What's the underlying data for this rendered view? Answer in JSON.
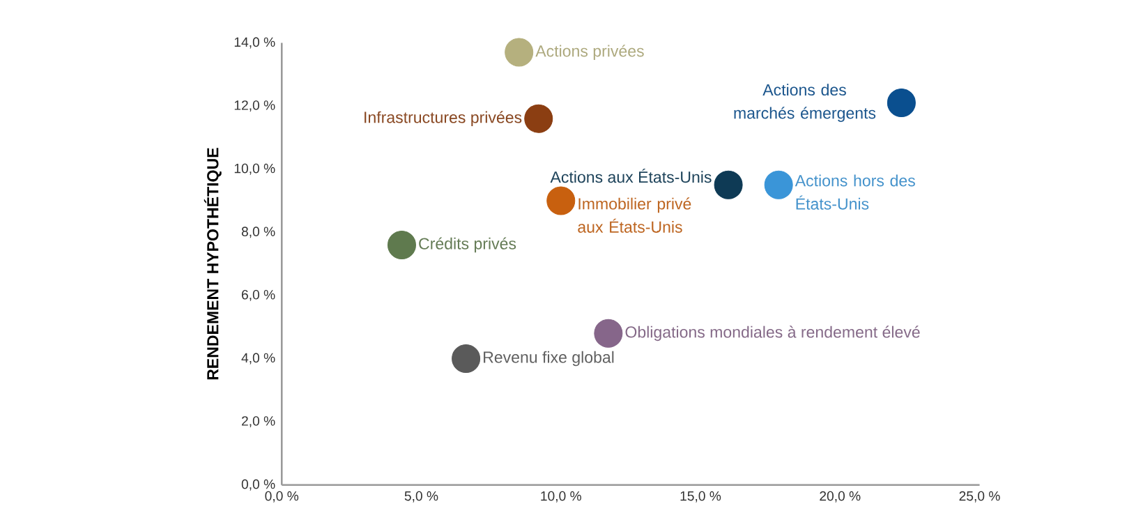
{
  "chart_data": {
    "type": "scatter",
    "ylabel": "RENDEMENT HYPOTHÉTIQUE",
    "marker": "circle",
    "xlim": [
      0,
      25
    ],
    "ylim": [
      0,
      14
    ],
    "xticks": [
      {
        "value": 0,
        "label": "0,0 %"
      },
      {
        "value": 5,
        "label": "5,0 %"
      },
      {
        "value": 10,
        "label": "10,0 %"
      },
      {
        "value": 15,
        "label": "15,0 %"
      },
      {
        "value": 20,
        "label": "20,0 %"
      },
      {
        "value": 25,
        "label": "25,0 %"
      }
    ],
    "yticks": [
      {
        "value": 0,
        "label": "0,0 %"
      },
      {
        "value": 2,
        "label": "2,0 %"
      },
      {
        "value": 4,
        "label": "4,0 %"
      },
      {
        "value": 6,
        "label": "6,0 %"
      },
      {
        "value": 8,
        "label": "8,0 %"
      },
      {
        "value": 10,
        "label": "10,0 %"
      },
      {
        "value": 12,
        "label": "12,0 %"
      },
      {
        "value": 14,
        "label": "14,0 %"
      }
    ],
    "series": [
      {
        "name": "Actions privées",
        "color": "#b5b07e",
        "x": [
          8.5
        ],
        "values": [
          13.7
        ]
      },
      {
        "name": "Infrastructures privées",
        "color": "#8b3e12",
        "x": [
          9.2
        ],
        "values": [
          11.6
        ]
      },
      {
        "name": "Actions des marchés émergents",
        "color": "#0a4f8f",
        "x": [
          22.2
        ],
        "values": [
          12.1
        ]
      },
      {
        "name": "Actions aux États-Unis",
        "color": "#0e3a55",
        "x": [
          16.0
        ],
        "values": [
          9.5
        ]
      },
      {
        "name": "Actions hors des États-Unis",
        "color": "#3a95d8",
        "x": [
          17.8
        ],
        "values": [
          9.5
        ]
      },
      {
        "name": "Immobilier privé aux États-Unis",
        "color": "#c8600f",
        "x": [
          10.0
        ],
        "values": [
          9.0
        ]
      },
      {
        "name": "Crédits privés",
        "color": "#5f7a4e",
        "x": [
          4.3
        ],
        "values": [
          7.6
        ]
      },
      {
        "name": "Obligations mondiales à rendement élevé",
        "color": "#86668a",
        "x": [
          11.7
        ],
        "values": [
          4.8
        ]
      },
      {
        "name": "Revenu fixe global",
        "color": "#5a5a5a",
        "x": [
          6.6
        ],
        "values": [
          4.0
        ]
      }
    ]
  }
}
